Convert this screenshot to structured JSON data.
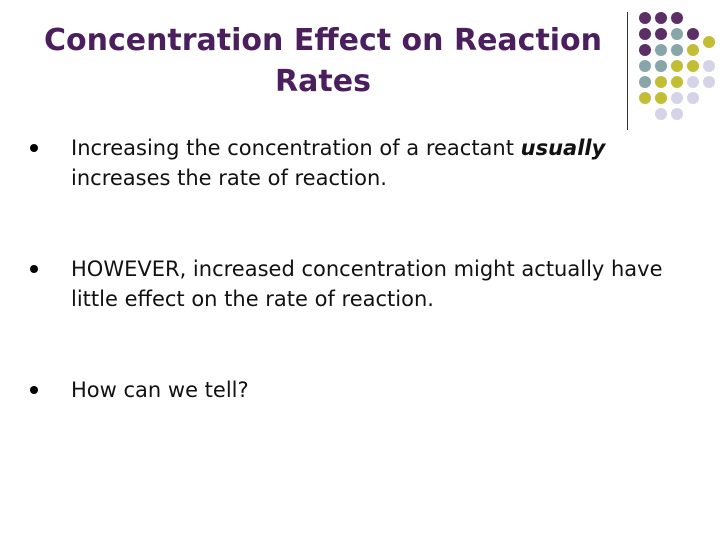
{
  "slide": {
    "title": "Concentration Effect on Reaction Rates",
    "bullets": [
      {
        "prefix": "Increasing the concentration of a reactant ",
        "emphasis": "usually",
        "suffix": " increases the rate of reaction."
      },
      {
        "text": " HOWEVER, increased concentration might actually have little effect on the rate of reaction."
      },
      {
        "text": "How can we tell?"
      }
    ]
  },
  "decoration": {
    "colors": {
      "purple": "#5b2f66",
      "teal": "#88a5aa",
      "yellow": "#c2bd35",
      "lavender": "#d5d3e6"
    }
  }
}
